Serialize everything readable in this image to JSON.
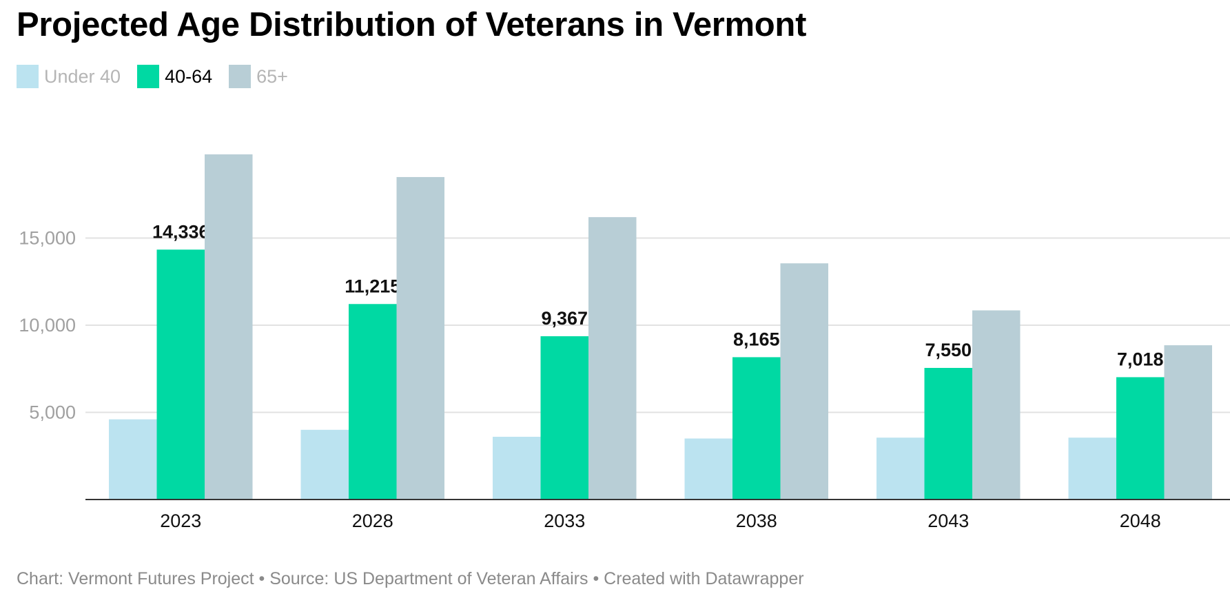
{
  "title": "Projected Age Distribution of Veterans in Vermont",
  "legend": [
    {
      "label": "Under 40",
      "color": "#bbe3f0",
      "state": "faded"
    },
    {
      "label": "40-64",
      "color": "#00d9a3",
      "state": "active"
    },
    {
      "label": "65+",
      "color": "#b8ced6",
      "state": "faded"
    }
  ],
  "footer": {
    "text": "Chart: Vermont Futures Project • Source: US Department of Veteran Affairs • Created with Datawrapper"
  },
  "chart_data": {
    "type": "bar",
    "title": "Projected Age Distribution of Veterans in Vermont",
    "categories": [
      "2023",
      "2028",
      "2033",
      "2038",
      "2043",
      "2048"
    ],
    "series": [
      {
        "name": "Under 40",
        "values": [
          4600,
          4000,
          3600,
          3500,
          3550,
          3550
        ],
        "color": "#bbe3f0"
      },
      {
        "name": "40-64",
        "values": [
          14336,
          11215,
          9367,
          8165,
          7550,
          7018
        ],
        "color": "#00d9a3",
        "data_labels": [
          "14,336",
          "11,215",
          "9,367",
          "8,165",
          "7,550",
          "7,018"
        ]
      },
      {
        "name": "65+",
        "values": [
          19800,
          18500,
          16200,
          13550,
          10850,
          8850
        ],
        "color": "#b8ced6"
      }
    ],
    "yticks": [
      5000,
      10000,
      15000
    ],
    "ytick_labels": [
      "5,000",
      "10,000",
      "15,000"
    ],
    "ylim": [
      0,
      20000
    ],
    "grid": true,
    "xlabel": "",
    "ylabel": "",
    "legend_position": "top-left"
  }
}
